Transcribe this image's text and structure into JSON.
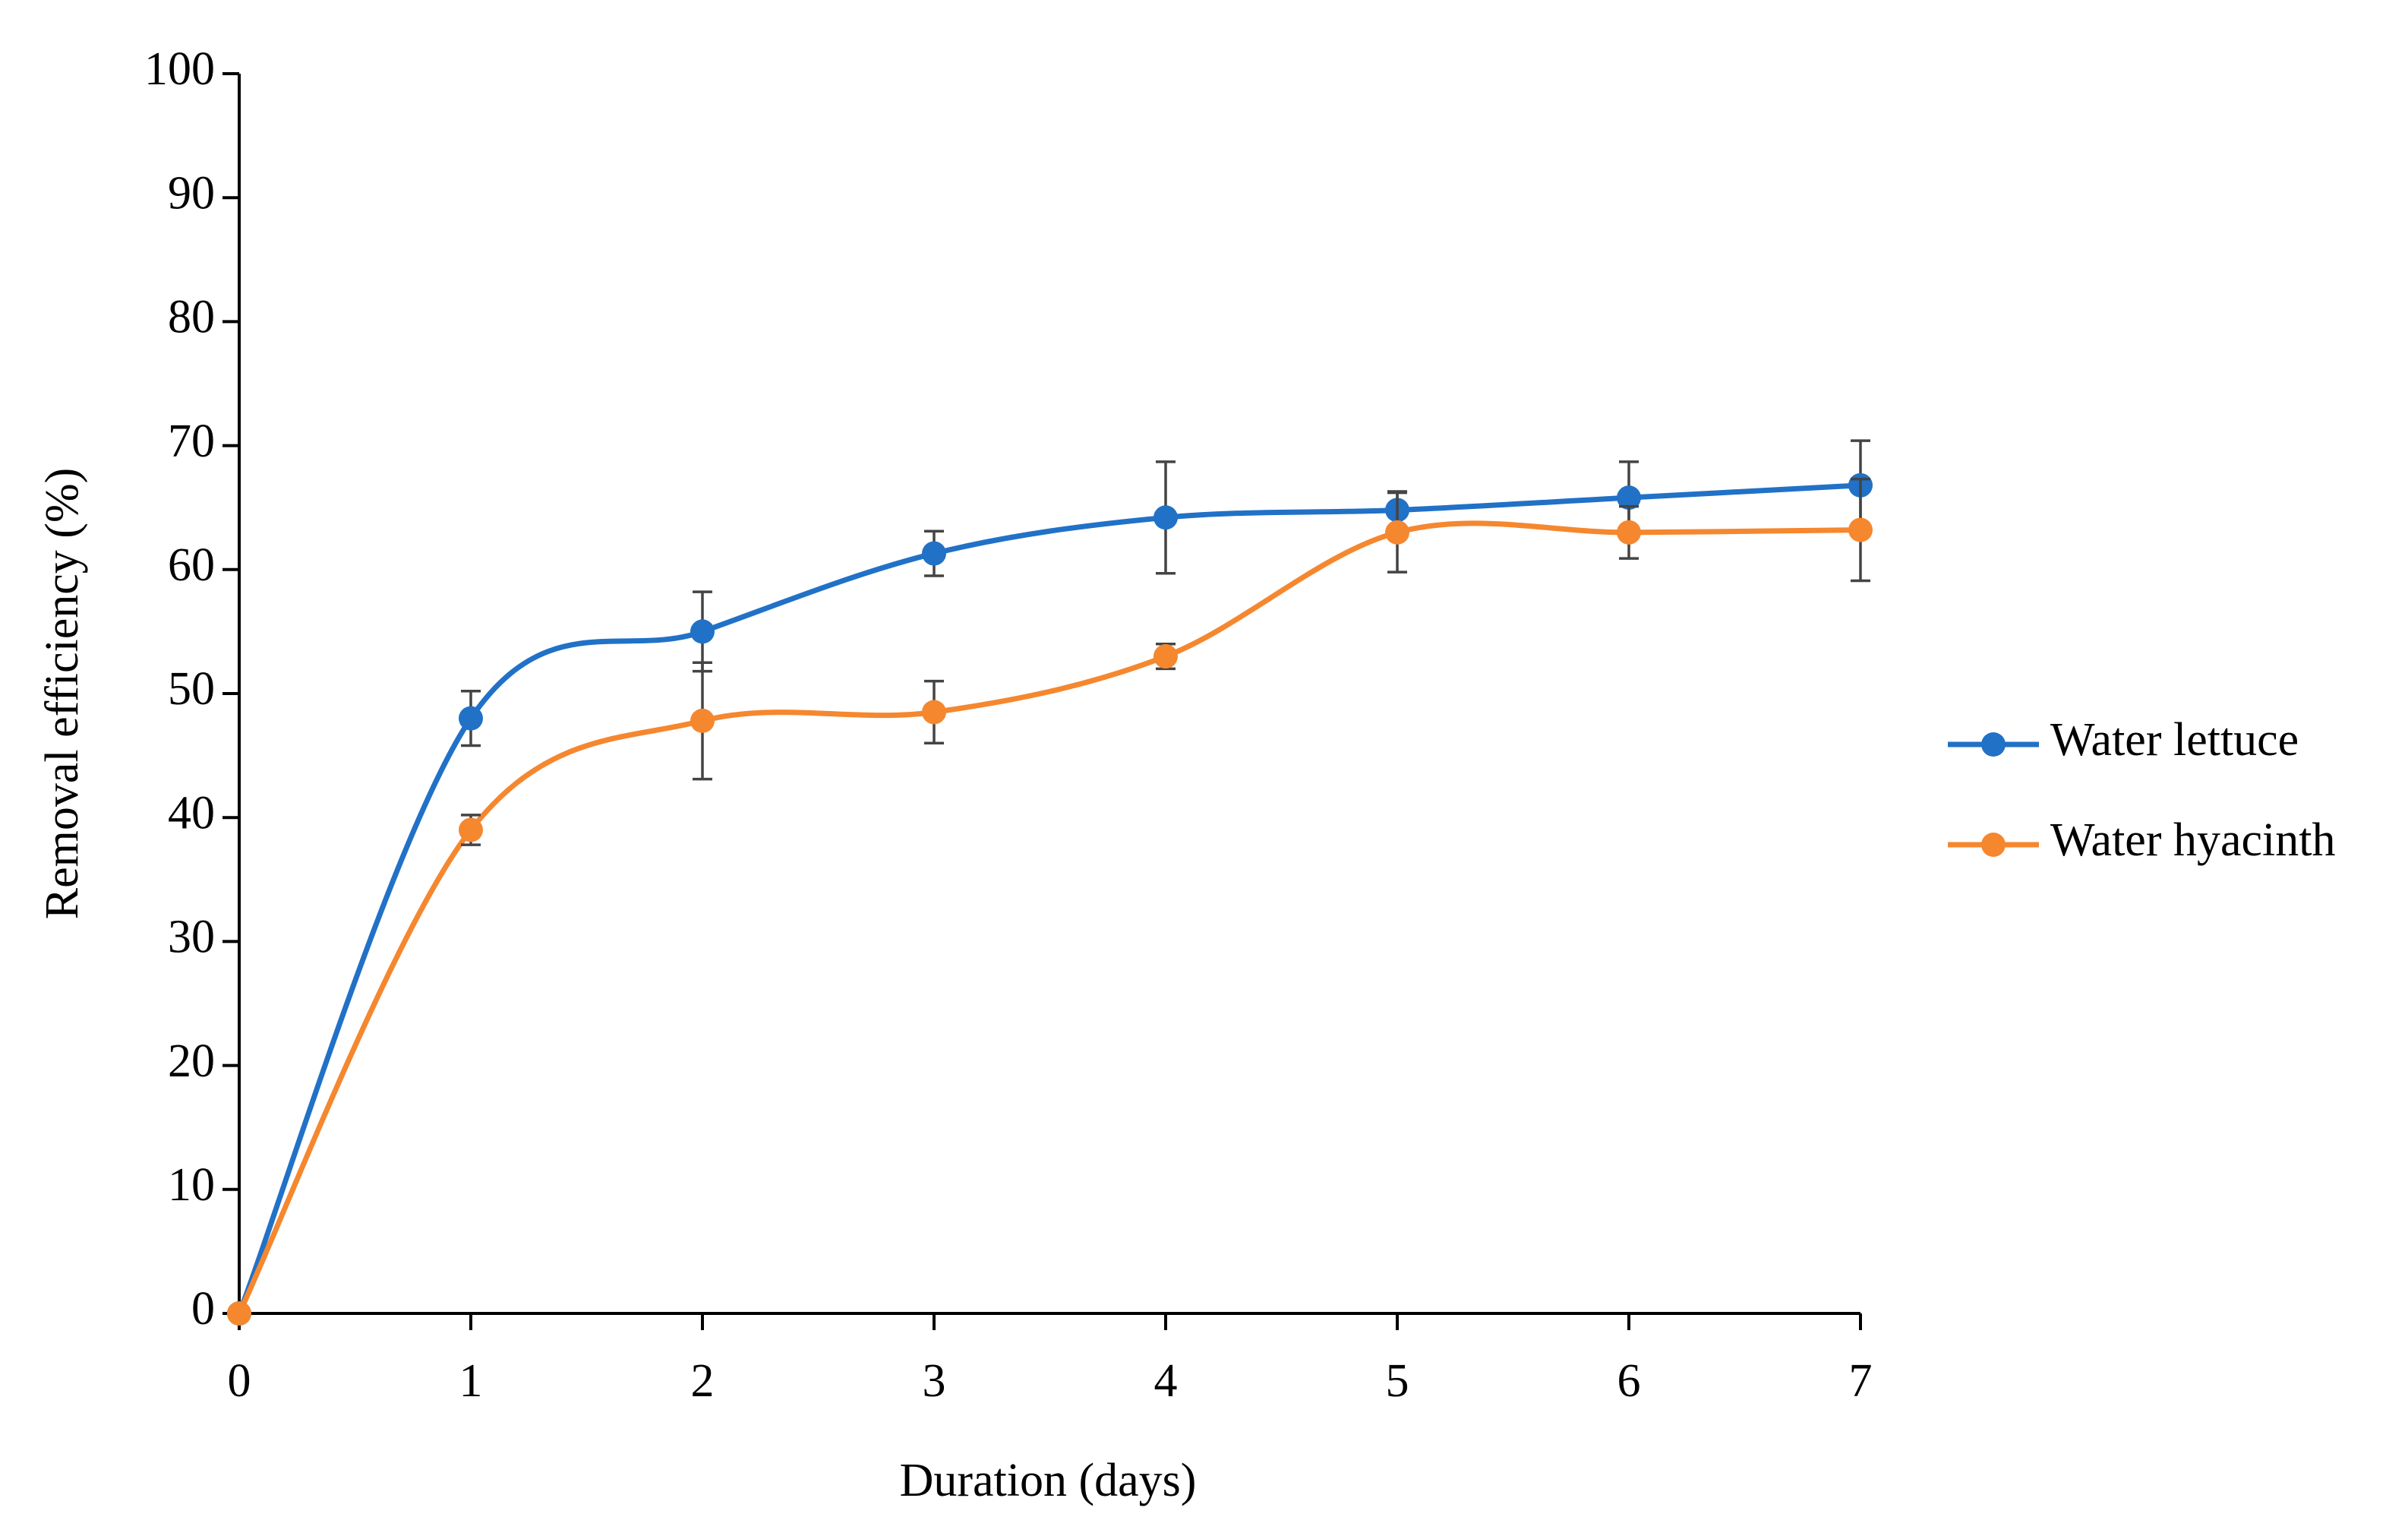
{
  "chart_data": {
    "type": "line",
    "x_label": "Duration (days)",
    "y_label": "Removal efficiency (%)",
    "x": [
      0,
      1,
      2,
      3,
      4,
      5,
      6,
      7
    ],
    "series": [
      {
        "name": "Water lettuce",
        "color": "#2171c7",
        "values": [
          0,
          48,
          55,
          61.3,
          64.2,
          64.8,
          65.8,
          66.8
        ],
        "errors": [
          0,
          2.2,
          3.2,
          1.8,
          4.5,
          1.5,
          2.9,
          3.6
        ]
      },
      {
        "name": "Water hyacinth",
        "color": "#f5872f",
        "values": [
          0,
          39,
          47.8,
          48.5,
          53,
          63,
          63,
          63.2
        ],
        "errors": [
          0,
          1.2,
          4.7,
          2.5,
          1,
          3.2,
          2.1,
          4.1
        ]
      }
    ],
    "xlim": [
      0,
      7
    ],
    "xticks": [
      0,
      1,
      2,
      3,
      4,
      5,
      6,
      7
    ],
    "ylim": [
      0,
      100
    ],
    "yticks": [
      0,
      10,
      20,
      30,
      40,
      50,
      60,
      70,
      80,
      90,
      100
    ],
    "legend": "right",
    "grid": false
  }
}
